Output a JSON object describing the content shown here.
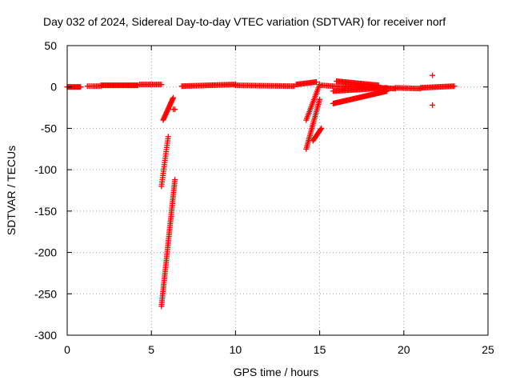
{
  "chart_data": {
    "type": "scatter",
    "title": "Day 032 of 2024, Sidereal Day-to-day VTEC variation (SDTVAR) for receiver norf",
    "xlabel": "GPS time / hours",
    "ylabel": "SDTVAR / TECUs",
    "xlim": [
      0,
      25
    ],
    "ylim": [
      -300,
      50
    ],
    "xticks": [
      0,
      5,
      10,
      15,
      20,
      25
    ],
    "yticks": [
      -300,
      -250,
      -200,
      -150,
      -100,
      -50,
      0,
      50
    ],
    "grid": true,
    "legend": "none",
    "marker": "plus",
    "color": "#ff0000",
    "segments": [
      {
        "x": [
          0.0,
          0.8
        ],
        "y": [
          0.0,
          0.0
        ],
        "n": 16
      },
      {
        "x": [
          1.2,
          2.0
        ],
        "y": [
          1.0,
          1.0
        ],
        "n": 10
      },
      {
        "x": [
          2.0,
          4.2
        ],
        "y": [
          2.0,
          2.0
        ],
        "n": 40
      },
      {
        "x": [
          4.3,
          5.6
        ],
        "y": [
          3.0,
          3.0
        ],
        "n": 18
      },
      {
        "x": [
          5.7,
          6.3
        ],
        "y": [
          -40,
          -13
        ],
        "n": 22
      },
      {
        "x": [
          5.6,
          6.0
        ],
        "y": [
          -120,
          -60
        ],
        "n": 24
      },
      {
        "x": [
          5.6,
          6.4
        ],
        "y": [
          -265,
          -112
        ],
        "n": 70
      },
      {
        "x": [
          6.3,
          6.4
        ],
        "y": [
          -27,
          -27
        ],
        "n": 2
      },
      {
        "x": [
          6.8,
          10.0
        ],
        "y": [
          1.0,
          3.0
        ],
        "n": 45
      },
      {
        "x": [
          10.0,
          13.5
        ],
        "y": [
          2.0,
          1.0
        ],
        "n": 45
      },
      {
        "x": [
          13.6,
          14.8
        ],
        "y": [
          3.0,
          6.0
        ],
        "n": 20
      },
      {
        "x": [
          14.2,
          15.0
        ],
        "y": [
          -40,
          3.0
        ],
        "n": 22
      },
      {
        "x": [
          14.2,
          15.0
        ],
        "y": [
          -75,
          -15
        ],
        "n": 30
      },
      {
        "x": [
          14.6,
          15.1
        ],
        "y": [
          -65,
          -50
        ],
        "n": 14
      },
      {
        "x": [
          15.1,
          16.5
        ],
        "y": [
          2.0,
          0.0
        ],
        "n": 18
      },
      {
        "x": [
          15.8,
          19.0
        ],
        "y": [
          -20,
          -5
        ],
        "n": 60
      },
      {
        "x": [
          15.8,
          19.0
        ],
        "y": [
          -5,
          -1
        ],
        "n": 50
      },
      {
        "x": [
          16.0,
          18.5
        ],
        "y": [
          7.0,
          2.0
        ],
        "n": 40
      },
      {
        "x": [
          16.5,
          19.5
        ],
        "y": [
          1.0,
          -2.0
        ],
        "n": 45
      },
      {
        "x": [
          19.5,
          21.0
        ],
        "y": [
          -1.0,
          -2.0
        ],
        "n": 20
      },
      {
        "x": [
          21.0,
          23.0
        ],
        "y": [
          -1.0,
          1.0
        ],
        "n": 30
      },
      {
        "x": [
          21.7,
          21.7
        ],
        "y": [
          14,
          14
        ],
        "n": 1
      },
      {
        "x": [
          21.7,
          21.7
        ],
        "y": [
          -22,
          -22
        ],
        "n": 1
      }
    ]
  }
}
